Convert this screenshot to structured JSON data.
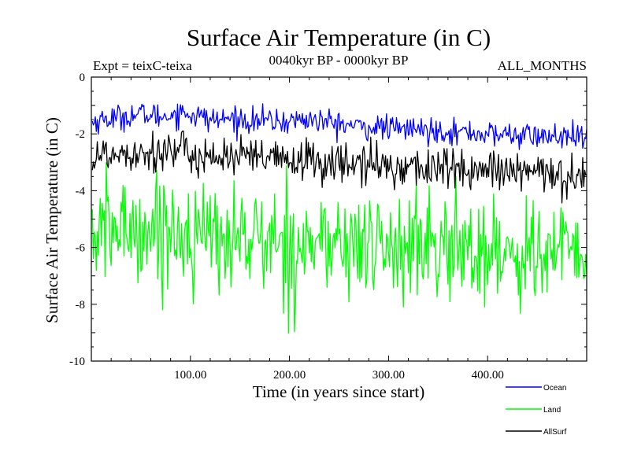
{
  "chart_data": {
    "type": "line",
    "title": "Surface Air Temperature (in C)",
    "subtitle_left": "Expt = teixC-teixa",
    "subtitle_center": "0040kyr BP - 0000kyr BP",
    "subtitle_right": "ALL_MONTHS",
    "xlabel": "Time (in years since start)",
    "ylabel": "Surface Air Temperature (in C)",
    "xlim": [
      0,
      500
    ],
    "ylim": [
      -10,
      0
    ],
    "x_ticks": [
      100,
      200,
      300,
      400
    ],
    "x_tick_labels": [
      "100.00",
      "200.00",
      "300.00",
      "400.00"
    ],
    "y_ticks": [
      0,
      -2,
      -4,
      -6,
      -8,
      -10
    ],
    "y_tick_labels": [
      "0",
      "-2",
      "-4",
      "-6",
      "-8",
      "-10"
    ],
    "legend_position": "bottom-right, outside plot",
    "x_step": 1,
    "series": [
      {
        "name": "Ocean",
        "color": "#0000ff",
        "values_every_10_years": [
          -1.6,
          -1.5,
          -1.45,
          -1.4,
          -1.35,
          -1.3,
          -1.35,
          -1.4,
          -1.3,
          -1.25,
          -1.3,
          -1.4,
          -1.5,
          -1.5,
          -1.45,
          -1.5,
          -1.55,
          -1.5,
          -1.55,
          -1.6,
          -1.55,
          -1.5,
          -1.5,
          -1.55,
          -1.6,
          -1.65,
          -1.7,
          -1.75,
          -1.8,
          -1.75,
          -1.8,
          -1.85,
          -1.8,
          -1.85,
          -1.9,
          -1.85,
          -1.9,
          -1.95,
          -1.95,
          -2.0,
          -2.0,
          -2.05,
          -2.0,
          -2.05,
          -2.05,
          -2.1,
          -2.1,
          -2.1,
          -2.15,
          -2.15
        ],
        "min": -2.55,
        "max": -0.9
      },
      {
        "name": "Land",
        "color": "#00ff00",
        "values_every_10_years": [
          -5.6,
          -5.5,
          -5.4,
          -5.35,
          -5.3,
          -5.35,
          -5.4,
          -5.3,
          -5.35,
          -5.5,
          -5.55,
          -5.6,
          -5.65,
          -5.6,
          -5.7,
          -5.65,
          -5.7,
          -5.75,
          -5.8,
          -5.8,
          -5.85,
          -5.9,
          -5.85,
          -5.8,
          -5.9,
          -5.95,
          -5.9,
          -5.95,
          -6.0,
          -5.95,
          -6.0,
          -5.95,
          -6.0,
          -6.05,
          -6.0,
          -6.0,
          -6.05,
          -6.1,
          -6.05,
          -6.1,
          -6.15,
          -6.1,
          -6.15,
          -6.2,
          -6.15,
          -6.2,
          -6.2,
          -6.25,
          -6.2,
          -6.25
        ],
        "min": -9.7,
        "max": -2.5
      },
      {
        "name": "AllSurf",
        "color": "#000000",
        "values_every_10_years": [
          -2.85,
          -2.75,
          -2.7,
          -2.65,
          -2.6,
          -2.6,
          -2.65,
          -2.6,
          -2.6,
          -2.65,
          -2.7,
          -2.75,
          -2.8,
          -2.8,
          -2.8,
          -2.85,
          -2.85,
          -2.9,
          -2.9,
          -2.95,
          -2.95,
          -2.95,
          -2.95,
          -3.0,
          -3.0,
          -3.05,
          -3.05,
          -3.1,
          -3.1,
          -3.1,
          -3.15,
          -3.15,
          -3.15,
          -3.2,
          -3.2,
          -3.2,
          -3.25,
          -3.25,
          -3.3,
          -3.3,
          -3.3,
          -3.35,
          -3.35,
          -3.35,
          -3.4,
          -3.4,
          -3.4,
          -3.45,
          -3.45,
          -3.5
        ],
        "min": -4.7,
        "max": -1.9
      }
    ]
  }
}
